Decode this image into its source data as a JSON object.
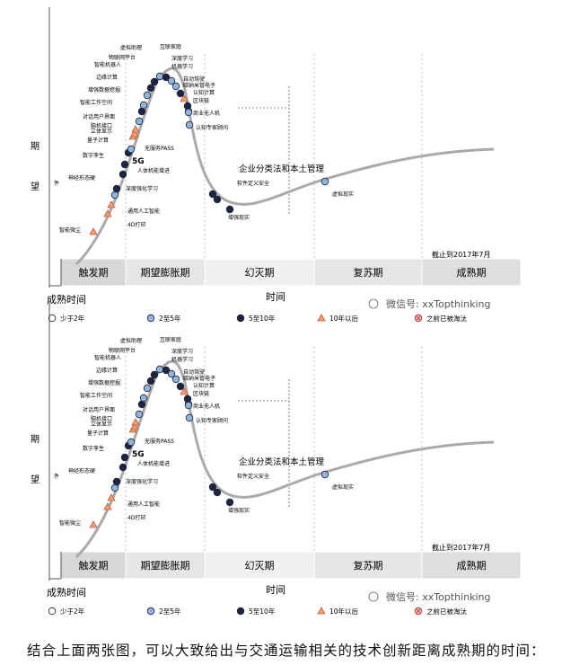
{
  "chart_data": [
    {
      "type": "line",
      "title": "",
      "xlabel": "时间",
      "ylabel": "期望",
      "x_start_label": "成熟时间",
      "note": "截止到2017年7月",
      "phases": [
        "触发期",
        "期望膨胀期",
        "幻灭期",
        "复苏期",
        "成熟期"
      ],
      "watermark": "微信号: xxTopthinking",
      "legend": [
        {
          "label": "少于2年",
          "shape": "circle",
          "color": "#ffffff"
        },
        {
          "label": "2至5年",
          "shape": "circle",
          "color": "#8fb4dd"
        },
        {
          "label": "5至10年",
          "shape": "circle",
          "color": "#1c2544"
        },
        {
          "label": "10年以后",
          "shape": "triangle",
          "color": "#f4a460"
        },
        {
          "label": "之前已被淘汰",
          "shape": "crossed-circle",
          "color": "#f2b8b8"
        }
      ],
      "technologies": [
        {
          "name": "智能微尘",
          "category": "10年以后"
        },
        {
          "name": "4D打印",
          "category": "10年以后"
        },
        {
          "name": "通用人工智能",
          "category": "10年以后"
        },
        {
          "name": "深度强化学习",
          "category": "2至5年"
        },
        {
          "name": "神经形态硬",
          "category": "5至10年"
        },
        {
          "name": "件",
          "category": ""
        },
        {
          "name": "人体机能增进",
          "category": "5至10年"
        },
        {
          "name": "5G",
          "category": "5至10年"
        },
        {
          "name": "数字孪生",
          "category": "5至10年"
        },
        {
          "name": "无服务PASS",
          "category": "2至5年"
        },
        {
          "name": "量子计算",
          "category": "10年以后"
        },
        {
          "name": "立体显示",
          "category": "10年以后"
        },
        {
          "name": "脑机接口",
          "category": "10年以后"
        },
        {
          "name": "对话用户界面",
          "category": "2至5年"
        },
        {
          "name": "智能工作空间",
          "category": "5至10年"
        },
        {
          "name": "增强数据挖掘",
          "category": "2至5年"
        },
        {
          "name": "边缘计算",
          "category": "2至5年"
        },
        {
          "name": "智能机器人",
          "category": "5至10年"
        },
        {
          "name": "物联网平台",
          "category": "5至10年"
        },
        {
          "name": "虚拟助理",
          "category": "2至5年"
        },
        {
          "name": "互联家庭",
          "category": "5至10年"
        },
        {
          "name": "深度学习",
          "category": "2至5年"
        },
        {
          "name": "机器学习",
          "category": "2至5年"
        },
        {
          "name": "自动驾驶",
          "category": "5至10年"
        },
        {
          "name": "碳纳米管电子",
          "category": "10年以后"
        },
        {
          "name": "认知计算",
          "category": "5至10年"
        },
        {
          "name": "区块链",
          "category": "5至10年"
        },
        {
          "name": "商业无人机",
          "category": "2至5年"
        },
        {
          "name": "认知专家顾问",
          "category": "2至5年"
        },
        {
          "name": "企业分类法和本土管理",
          "category": "5至10年"
        },
        {
          "name": "软件定义安全",
          "category": "5至10年"
        },
        {
          "name": "增强现实",
          "category": "5至10年"
        },
        {
          "name": "虚拟现实",
          "category": "2至5年"
        }
      ]
    }
  ],
  "caption": "结合上面两张图，可以大致给出与交通运输相关的技术创新距离成熟期的时间："
}
